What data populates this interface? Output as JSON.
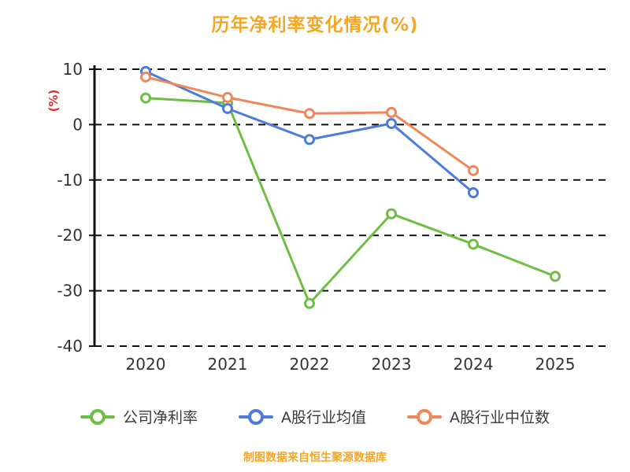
{
  "chart_data": {
    "type": "line",
    "title": "历年净利率变化情况(%)",
    "ylabel": "(%)",
    "footer": "制图数据来自恒生聚源数据库",
    "x": [
      "2020",
      "2021",
      "2022",
      "2023",
      "2024",
      "2025"
    ],
    "ylim": [
      -40,
      10
    ],
    "yticks": [
      10,
      0,
      -10,
      -20,
      -30,
      -40
    ],
    "grid": "horizontal-dashed",
    "legend_position": "bottom",
    "series": [
      {
        "name": "公司净利率",
        "color": "#6FBE44",
        "values": [
          4.8,
          3.9,
          -32.3,
          -16.1,
          -21.6,
          -27.4
        ]
      },
      {
        "name": "A股行业均值",
        "color": "#4D7BDD",
        "values": [
          9.6,
          2.9,
          -2.7,
          0.2,
          -12.3,
          null
        ]
      },
      {
        "name": "A股行业中位数",
        "color": "#F0875A",
        "values": [
          8.6,
          4.9,
          2.0,
          2.2,
          -8.3,
          null
        ]
      }
    ],
    "colors": {
      "title": "#F6A623",
      "ylabel": "#E0312E",
      "footer": "#F6A623",
      "axis": "#111111",
      "grid": "#111111",
      "tick_labels": "#333333",
      "marker_fill": "#ffffff"
    }
  }
}
